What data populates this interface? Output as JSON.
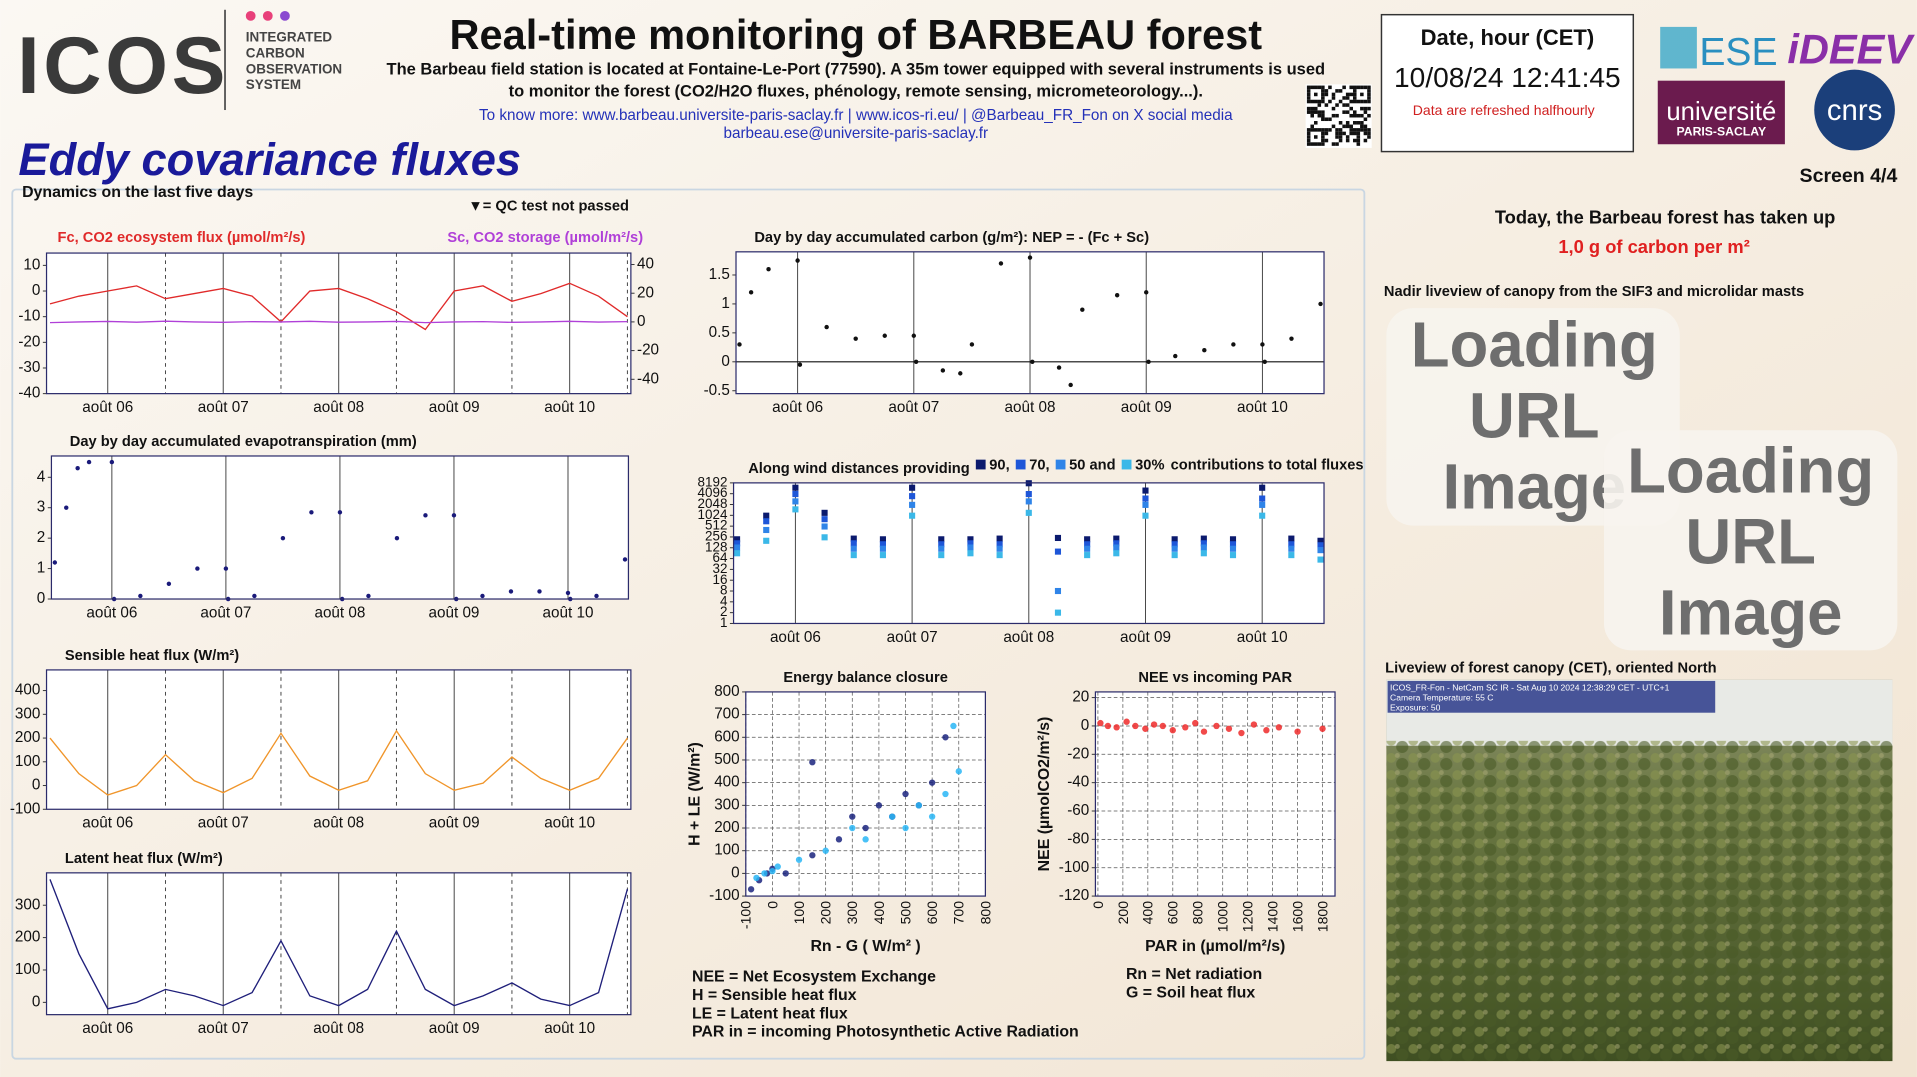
{
  "header": {
    "logo": "ICOS",
    "logo_subtitle": [
      "INTEGRATED",
      "CARBON",
      "OBSERVATION",
      "SYSTEM"
    ],
    "title": "Real-time monitoring of BARBEAU forest",
    "description": [
      "The Barbeau field station is located at Fontaine-Le-Port (77590). A 35m tower equipped with several instruments is used",
      "to monitor the forest (CO2/H2O fluxes, phénology, remote sensing, micrometeorology...)."
    ],
    "links": "To know more: www.barbeau.universite-paris-saclay.fr | www.icos-ri.eu/ | @Barbeau_FR_Fon on X social media",
    "email": "barbeau.ese@universite-paris-saclay.fr",
    "date_label": "Date, hour (CET)",
    "datetime": "10/08/24 12:41:45",
    "refresh_note": "Data are refreshed halfhourly",
    "partner_logos": [
      "ESE",
      "iDEEV",
      "université",
      "PARIS-SACLAY",
      "cnrs"
    ]
  },
  "section_title": "Eddy covariance fluxes",
  "panel_title": "Dynamics on the last five days",
  "qc_note": "▼= QC test not passed",
  "screen": "Screen 4/4",
  "carbon_uptake": {
    "text": "Today, the Barbeau forest  has taken up",
    "amount": "1,0  g of carbon per m²"
  },
  "nadir_caption": "Nadir liveview of canopy from the SIF3 and microlidar masts",
  "loading_images": [
    [
      "Loading",
      "URL",
      "Image"
    ],
    [
      "Loading",
      "URL",
      "Image"
    ]
  ],
  "canopy_caption": "Liveview of forest canopy (CET), oriented North",
  "camera_overlay": [
    "ICOS_FR-Fon - NetCam SC IR - Sat Aug 10 2024 12:38:29 CET - UTC+1",
    "Camera Temperature: 55 C",
    "Exposure: 50"
  ],
  "glossary_left": [
    "NEE = Net Ecosystem Exchange",
    "H = Sensible heat flux",
    "LE = Latent heat flux",
    "PAR in = incoming  Photosynthetic Active Radiation"
  ],
  "glossary_right": [
    "Rn = Net radiation",
    "G = Soil heat flux"
  ],
  "chart_data": [
    {
      "type": "line",
      "legend": "corners",
      "x": [
        5.5,
        5.75,
        6.0,
        6.25,
        6.5,
        6.75,
        7.0,
        7.25,
        7.5,
        7.75,
        8.0,
        8.25,
        8.5,
        8.75,
        9.0,
        9.25,
        9.5,
        9.75,
        10.0,
        10.25,
        10.5
      ],
      "xlim": [
        5.47,
        10.53
      ],
      "xticks": [
        {
          "value": 6,
          "label": "août 06"
        },
        {
          "value": 7,
          "label": "août 07"
        },
        {
          "value": 8,
          "label": "août 08"
        },
        {
          "value": 9,
          "label": "août 09"
        },
        {
          "value": 10,
          "label": "août 10"
        }
      ],
      "xminor": [
        6.5,
        7.5,
        8.5,
        9.5,
        10.5
      ],
      "ylim": [
        -40,
        14.8
      ],
      "yticks": [
        10,
        0,
        -10,
        -20,
        -30,
        -40
      ],
      "y2lim": [
        -50,
        48
      ],
      "y2ticks": [
        40,
        20,
        0,
        -20,
        -40
      ],
      "series": [
        {
          "name": "Fc, CO2 ecosystem flux (µmol/m²/s)",
          "color": "#e02a2a",
          "values": [
            -5,
            -2,
            0,
            2,
            -3,
            -1,
            1,
            -2,
            -12,
            0,
            1,
            -3,
            -8,
            -15,
            0,
            2,
            -4,
            -1,
            3,
            -2,
            -10
          ]
        },
        {
          "name": "Sc, CO2 storage (µmol/m²/s)",
          "color": "#b040d8",
          "axis": "y2",
          "values": [
            -0.5,
            0,
            0.3,
            -0.2,
            0.5,
            0,
            -0.3,
            0.2,
            0,
            0.4,
            -0.2,
            0,
            0.3,
            -0.5,
            0,
            0.2,
            -0.3,
            0,
            0.4,
            -0.1,
            0.2
          ]
        }
      ]
    },
    {
      "type": "scatter",
      "title": "Day by day accumulated evapotranspiration (mm)",
      "x": [
        5.5,
        5.6,
        5.7,
        5.8,
        6.0,
        6.02,
        6.25,
        6.5,
        6.75,
        7.0,
        7.02,
        7.25,
        7.5,
        7.75,
        8.0,
        8.02,
        8.25,
        8.5,
        8.75,
        9.0,
        9.02,
        9.25,
        9.5,
        9.75,
        10.0,
        10.02,
        10.25,
        10.5
      ],
      "xlim": [
        5.47,
        10.53
      ],
      "xticks": [
        {
          "value": 6,
          "label": "août 06"
        },
        {
          "value": 7,
          "label": "août 07"
        },
        {
          "value": 8,
          "label": "août 08"
        },
        {
          "value": 9,
          "label": "août 09"
        },
        {
          "value": 10,
          "label": "août 10"
        }
      ],
      "ylim": [
        0,
        4.7
      ],
      "yticks": [
        4,
        3,
        2,
        1,
        0
      ],
      "series": [
        {
          "color": "#1a1a7a",
          "values": [
            1.2,
            3.0,
            4.3,
            4.5,
            4.5,
            0,
            0.1,
            0.5,
            1.0,
            1.0,
            0,
            0.1,
            2.0,
            2.85,
            2.85,
            0,
            0.1,
            2.0,
            2.75,
            2.75,
            0,
            0.1,
            0.25,
            0.25,
            0.2,
            0,
            0.1,
            1.3
          ]
        }
      ]
    },
    {
      "type": "line",
      "title": "Sensible heat flux (W/m²)",
      "x": [
        5.5,
        5.75,
        6.0,
        6.25,
        6.5,
        6.75,
        7.0,
        7.25,
        7.5,
        7.75,
        8.0,
        8.25,
        8.5,
        8.75,
        9.0,
        9.25,
        9.5,
        9.75,
        10.0,
        10.25,
        10.5
      ],
      "xlim": [
        5.47,
        10.53
      ],
      "xticks": [
        {
          "value": 6,
          "label": "août 06"
        },
        {
          "value": 7,
          "label": "août 07"
        },
        {
          "value": 8,
          "label": "août 08"
        },
        {
          "value": 9,
          "label": "août 09"
        },
        {
          "value": 10,
          "label": "août 10"
        }
      ],
      "xminor": [
        6.5,
        7.5,
        8.5,
        9.5,
        10.5
      ],
      "ylim": [
        -100,
        487
      ],
      "yticks": [
        400,
        300,
        200,
        100,
        0,
        -100
      ],
      "series": [
        {
          "color": "#f0952a",
          "values": [
            200,
            50,
            -40,
            0,
            130,
            20,
            -30,
            30,
            220,
            40,
            -20,
            20,
            230,
            50,
            -20,
            10,
            120,
            30,
            -20,
            30,
            200
          ]
        }
      ]
    },
    {
      "type": "line",
      "title": "Latent heat flux (W/m²)",
      "x": [
        5.5,
        5.75,
        6.0,
        6.25,
        6.5,
        6.75,
        7.0,
        7.25,
        7.5,
        7.75,
        8.0,
        8.25,
        8.5,
        8.75,
        9.0,
        9.25,
        9.5,
        9.75,
        10.0,
        10.25,
        10.5
      ],
      "xlim": [
        5.47,
        10.53
      ],
      "xticks": [
        {
          "value": 6,
          "label": "août 06"
        },
        {
          "value": 7,
          "label": "août 07"
        },
        {
          "value": 8,
          "label": "août 08"
        },
        {
          "value": 9,
          "label": "août 09"
        },
        {
          "value": 10,
          "label": "août 10"
        }
      ],
      "xminor": [
        6.5,
        7.5,
        8.5,
        9.5,
        10.5
      ],
      "ylim": [
        -38,
        400
      ],
      "yticks": [
        300,
        200,
        100,
        0
      ],
      "series": [
        {
          "color": "#1f1f7a",
          "values": [
            380,
            150,
            -20,
            0,
            40,
            20,
            -10,
            30,
            190,
            20,
            -10,
            40,
            220,
            40,
            -10,
            20,
            60,
            10,
            -10,
            30,
            350
          ]
        }
      ]
    },
    {
      "type": "scatter",
      "title": "Day by day accumulated carbon (g/m²): NEP = - (Fc + Sc)",
      "zero_line": true,
      "x": [
        5.5,
        5.6,
        5.75,
        6.0,
        6.02,
        6.25,
        6.5,
        6.75,
        7.0,
        7.02,
        7.25,
        7.4,
        7.5,
        7.75,
        8.0,
        8.02,
        8.25,
        8.35,
        8.45,
        8.75,
        9.0,
        9.02,
        9.25,
        9.5,
        9.75,
        10.0,
        10.02,
        10.25,
        10.5
      ],
      "xlim": [
        5.47,
        10.53
      ],
      "xticks": [
        {
          "value": 6,
          "label": "août 06"
        },
        {
          "value": 7,
          "label": "août 07"
        },
        {
          "value": 8,
          "label": "août 08"
        },
        {
          "value": 9,
          "label": "août 09"
        },
        {
          "value": 10,
          "label": "août 10"
        }
      ],
      "ylim": [
        -0.55,
        1.9
      ],
      "yticks": [
        1.5,
        1,
        0.5,
        0,
        -0.5
      ],
      "series": [
        {
          "color": "#111111",
          "values": [
            0.3,
            1.2,
            1.6,
            1.75,
            -0.05,
            0.6,
            0.4,
            0.45,
            0.45,
            0,
            -0.15,
            -0.2,
            0.3,
            1.7,
            1.8,
            0,
            -0.1,
            -0.4,
            0.9,
            1.15,
            1.2,
            0,
            0.1,
            0.2,
            0.3,
            0.3,
            0,
            0.4,
            1.0
          ]
        }
      ]
    },
    {
      "type": "scatter",
      "marker": "square",
      "title": "Along wind distances providing",
      "legend": "inline",
      "legend_suffix": "contributions to total fluxes",
      "x": [
        5.5,
        5.75,
        6.0,
        6.25,
        6.5,
        6.75,
        7.0,
        7.25,
        7.5,
        7.75,
        8.0,
        8.25,
        8.5,
        8.75,
        9.0,
        9.25,
        9.5,
        9.75,
        10.0,
        10.25,
        10.5
      ],
      "xlim": [
        5.47,
        10.53
      ],
      "xticks": [
        {
          "value": 6,
          "label": "août 06"
        },
        {
          "value": 7,
          "label": "août 07"
        },
        {
          "value": 8,
          "label": "août 08"
        },
        {
          "value": 9,
          "label": "août 09"
        },
        {
          "value": 10,
          "label": "août 10"
        }
      ],
      "ylog": true,
      "ylim": [
        1,
        8192
      ],
      "yticks": [
        8192,
        4096,
        2048,
        1024,
        512,
        256,
        128,
        64,
        32,
        16,
        8,
        4,
        2,
        1
      ],
      "series": [
        {
          "name": "90,",
          "color": "#0b1a6e",
          "values": [
            220,
            1000,
            6000,
            1200,
            230,
            220,
            6000,
            220,
            220,
            230,
            8000,
            240,
            220,
            230,
            5000,
            220,
            230,
            220,
            6000,
            230,
            200
          ]
        },
        {
          "name": "70,",
          "color": "#1e56d8",
          "values": [
            170,
            700,
            4000,
            800,
            170,
            160,
            3500,
            160,
            170,
            160,
            4000,
            100,
            160,
            170,
            3000,
            160,
            170,
            160,
            3000,
            160,
            150
          ]
        },
        {
          "name": "50 and",
          "color": "#2f84e8",
          "values": [
            130,
            400,
            2500,
            500,
            120,
            120,
            2000,
            120,
            130,
            120,
            2500,
            8,
            120,
            130,
            2000,
            120,
            130,
            120,
            2000,
            120,
            110
          ]
        },
        {
          "name": "30%",
          "color": "#3bb8e8",
          "values": [
            90,
            200,
            1500,
            250,
            80,
            80,
            1000,
            80,
            90,
            80,
            1200,
            2,
            80,
            90,
            1000,
            80,
            90,
            80,
            1000,
            80,
            60
          ]
        }
      ]
    },
    {
      "type": "scatter",
      "title": "Energy balance closure",
      "xlabel": "Rn - G ( W/m² )",
      "ylabel": "H + LE (W/m²)",
      "grid": true,
      "xlim": [
        -100,
        800
      ],
      "xticks": [
        -100,
        0,
        100,
        200,
        300,
        400,
        500,
        600,
        700,
        800
      ],
      "ylim": [
        -100,
        800
      ],
      "yticks": [
        800,
        700,
        600,
        500,
        400,
        300,
        200,
        100,
        0,
        -100
      ],
      "series": [
        {
          "color": "#1a237e",
          "x": [
            -80,
            -50,
            -20,
            0,
            50,
            150,
            150,
            250,
            300,
            350,
            400,
            450,
            500,
            550,
            600,
            650
          ],
          "values": [
            -70,
            -30,
            0,
            20,
            0,
            80,
            490,
            150,
            250,
            200,
            300,
            250,
            350,
            300,
            400,
            600
          ]
        },
        {
          "color": "#29b6f6",
          "x": [
            -60,
            -30,
            0,
            20,
            100,
            200,
            300,
            350,
            450,
            500,
            550,
            600,
            650,
            680,
            700
          ],
          "values": [
            -20,
            0,
            10,
            30,
            60,
            100,
            200,
            150,
            250,
            200,
            300,
            250,
            350,
            650,
            450
          ]
        }
      ]
    },
    {
      "type": "scatter",
      "title": "NEE vs incoming PAR",
      "xlabel": "PAR in (µmol/m²/s)",
      "ylabel": "NEE (µmolCO2/m²/s)",
      "grid": true,
      "xlim": [
        -20,
        1900
      ],
      "xticks": [
        0,
        200,
        400,
        600,
        800,
        1000,
        1200,
        1400,
        1600,
        1800
      ],
      "ylim": [
        -120,
        24
      ],
      "yticks": [
        20,
        0,
        -20,
        -40,
        -60,
        -80,
        -100,
        -120
      ],
      "series": [
        {
          "color": "#ee2a2a",
          "x": [
            20,
            80,
            150,
            230,
            300,
            380,
            450,
            520,
            600,
            700,
            780,
            850,
            950,
            1050,
            1150,
            1250,
            1350,
            1450,
            1600,
            1800
          ],
          "values": [
            2,
            0,
            -1,
            3,
            0,
            -2,
            1,
            0,
            -3,
            -1,
            2,
            -4,
            0,
            -2,
            -5,
            1,
            -3,
            -1,
            -4,
            -2
          ]
        }
      ]
    }
  ]
}
